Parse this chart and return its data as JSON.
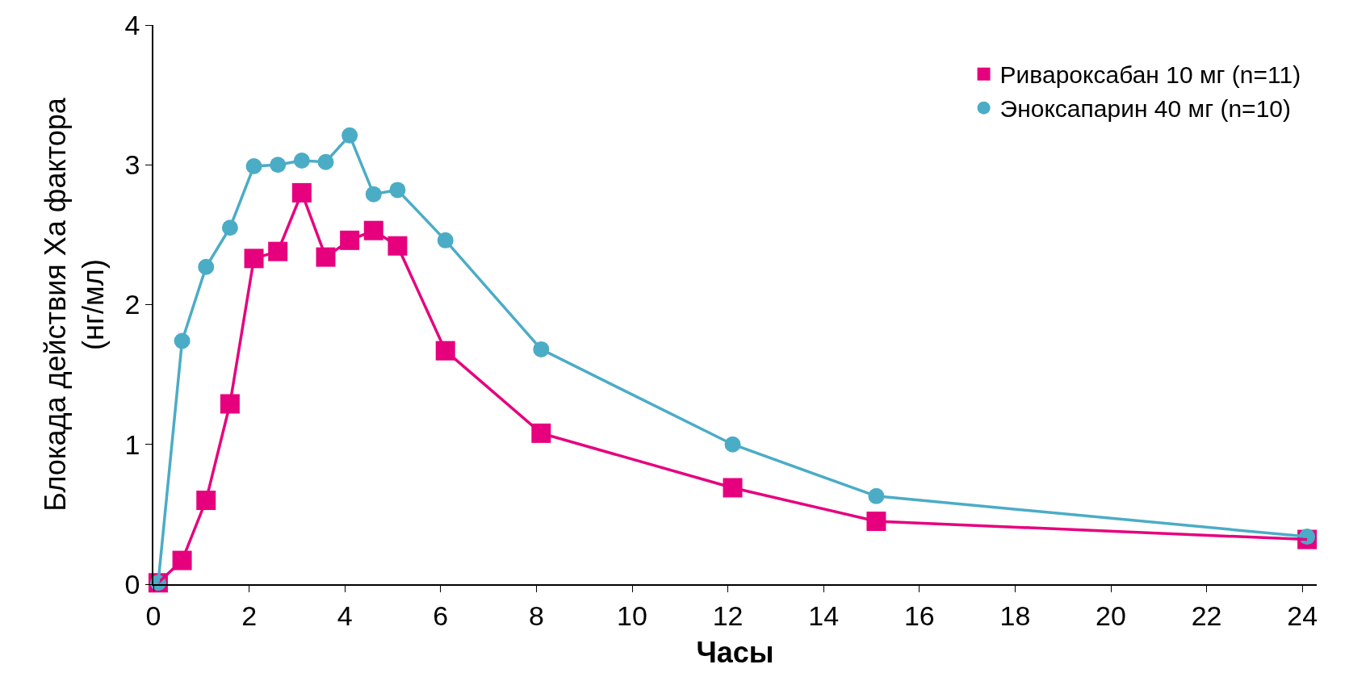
{
  "chart_data": {
    "type": "line",
    "xlabel": "Часы",
    "ylabel": "Блокада действия Xa фактора\n(нг/мл)",
    "x": [
      0.1,
      0.6,
      1.1,
      1.6,
      2.1,
      2.6,
      3.1,
      3.6,
      4.1,
      4.6,
      5.1,
      6.1,
      8.1,
      12.1,
      15.1,
      24.1
    ],
    "series": [
      {
        "name": "Ривароксабан 10 мг (n=11)",
        "color": "#e6007e",
        "marker": "square",
        "values": [
          0.01,
          0.17,
          0.6,
          1.29,
          2.33,
          2.38,
          2.8,
          2.34,
          2.46,
          2.53,
          2.42,
          1.67,
          1.08,
          0.69,
          0.45,
          0.32
        ]
      },
      {
        "name": "Эноксапарин 40 мг (n=10)",
        "color": "#4bacc6",
        "marker": "circle",
        "values": [
          0.01,
          1.74,
          2.27,
          2.55,
          2.99,
          3.0,
          3.03,
          3.02,
          3.21,
          2.79,
          2.82,
          2.46,
          1.68,
          1.0,
          0.63,
          0.34
        ]
      }
    ],
    "xlim": [
      0,
      24.3
    ],
    "xticks": [
      0,
      2,
      4,
      6,
      8,
      10,
      12,
      14,
      16,
      18,
      20,
      22,
      24
    ],
    "ylim": [
      0,
      4
    ],
    "yticks": [
      0,
      1,
      2,
      3,
      4
    ],
    "legend": "top right",
    "line_style": "solid"
  }
}
